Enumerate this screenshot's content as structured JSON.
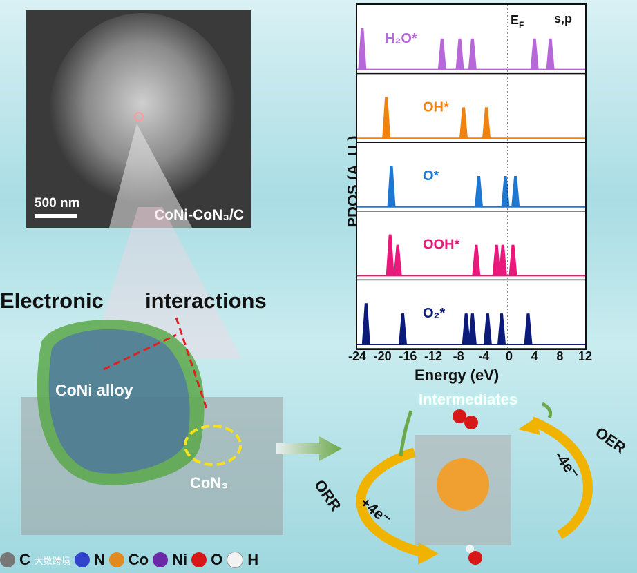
{
  "sem": {
    "scale_label": "500 nm",
    "sample_label": "CoNi-CoN₃/C"
  },
  "captions": {
    "electronic": "Electronic",
    "interactions": "interactions",
    "coni_alloy": "CoNi alloy",
    "con3": "CoN₃"
  },
  "pdos": {
    "ylabel": "PDOS (A. U.)",
    "xlabel": "Energy (eV)",
    "ef_label": "E",
    "ef_sub": "F",
    "orbital": "s,p",
    "x_ticks": [
      "-24",
      "-20",
      "-16",
      "-12",
      "-8",
      "-4",
      "0",
      "4",
      "8",
      "12"
    ]
  },
  "chart_data": {
    "type": "area",
    "title": "",
    "xlabel": "Energy (eV)",
    "ylabel": "PDOS (A. U.)",
    "xlim": [
      -24,
      12
    ],
    "series": [
      {
        "name": "H₂O*",
        "color": "#b768d8",
        "peaks": [
          -23.2,
          -10.6,
          -7.8,
          -5.8,
          4.0,
          6.5
        ]
      },
      {
        "name": "OH*",
        "color": "#f0820f",
        "peaks": [
          -19.4,
          -7.2,
          -3.6
        ]
      },
      {
        "name": "O*",
        "color": "#1e78d2",
        "peaks": [
          -18.6,
          -4.8,
          -0.6,
          1.0
        ]
      },
      {
        "name": "OOH*",
        "color": "#e8197a",
        "peaks": [
          -18.8,
          -17.6,
          -5.2,
          -2.0,
          -1.0,
          0.6
        ]
      },
      {
        "name": "O₂*",
        "color": "#0c1a7a",
        "peaks": [
          -22.6,
          -16.8,
          -6.8,
          -5.8,
          -3.4,
          -1.2,
          3.0
        ]
      }
    ]
  },
  "cycle": {
    "intermediates": "Intermediates",
    "orr": "ORR",
    "oer": "OER",
    "orr_electrons": "+4e⁻",
    "oer_electrons": "-4e⁻"
  },
  "legend": {
    "c": "C",
    "n": "N",
    "co": "Co",
    "ni": "Ni",
    "o": "O",
    "h": "H",
    "watermark": "大数跨境"
  },
  "colors": {
    "purple": "#b768d8",
    "orange": "#f0820f",
    "blue": "#1e78d2",
    "pink": "#e8197a",
    "navy": "#0c1a7a",
    "arrow_gold": "#f0b400",
    "arrow_green": "#6ba84a"
  }
}
